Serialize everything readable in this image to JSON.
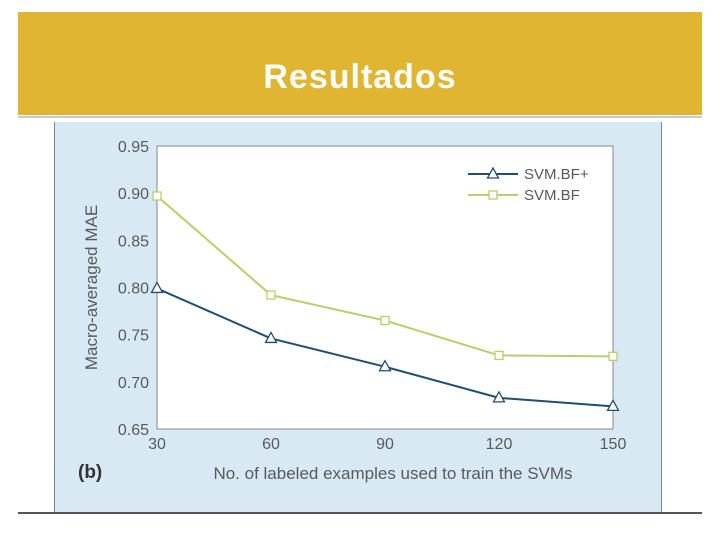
{
  "slide": {
    "title": "Resultados"
  },
  "colors": {
    "title_band": "#dfb531",
    "panel_bg": "#d8e9f3",
    "series_plus": "#1f4e6e",
    "series_bf": "#b9cf6a"
  },
  "chart_data": {
    "type": "line",
    "panel_label": "(b)",
    "xlabel": "No. of labeled examples used to train the SVMs",
    "ylabel": "Macro-averaged MAE",
    "x": [
      30,
      60,
      90,
      120,
      150
    ],
    "xticks": [
      "30",
      "60",
      "90",
      "120",
      "150"
    ],
    "yticks": [
      "0.65",
      "0.70",
      "0.75",
      "0.80",
      "0.85",
      "0.90",
      "0.95"
    ],
    "ylim": [
      0.65,
      0.95
    ],
    "xlim": [
      30,
      150
    ],
    "grid": true,
    "legend_position": "top-right",
    "series": [
      {
        "name": "SVM.BF+",
        "marker": "triangle",
        "color": "#1f4e6e",
        "values": [
          0.799,
          0.746,
          0.716,
          0.683,
          0.674
        ]
      },
      {
        "name": "SVM.BF",
        "marker": "square",
        "color": "#b9cf6a",
        "values": [
          0.897,
          0.792,
          0.765,
          0.728,
          0.727
        ]
      }
    ]
  }
}
